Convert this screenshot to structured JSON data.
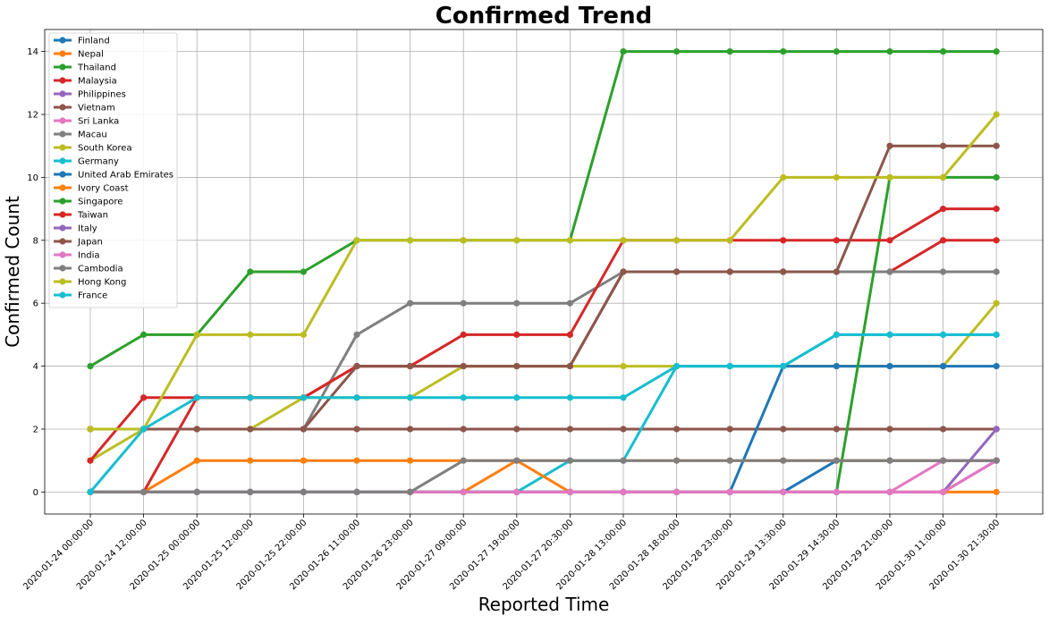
{
  "chart_data": {
    "type": "line",
    "title": "Confirmed Trend",
    "xlabel": "Reported Time",
    "ylabel": "Confirmed Count",
    "categories": [
      "2020-01-24 00:00:00",
      "2020-01-24 12:00:00",
      "2020-01-25 00:00:00",
      "2020-01-25 12:00:00",
      "2020-01-25 22:00:00",
      "2020-01-26 11:00:00",
      "2020-01-26 23:00:00",
      "2020-01-27 09:00:00",
      "2020-01-27 19:00:00",
      "2020-01-27 20:30:00",
      "2020-01-28 13:00:00",
      "2020-01-28 18:00:00",
      "2020-01-28 23:00:00",
      "2020-01-29 13:30:00",
      "2020-01-29 14:30:00",
      "2020-01-29 21:00:00",
      "2020-01-30 11:00:00",
      "2020-01-30 21:30:00"
    ],
    "ylim": [
      -0.7,
      14.7
    ],
    "yticks": [
      0,
      2,
      4,
      6,
      8,
      10,
      12,
      14
    ],
    "grid": true,
    "legend_position": "top-left",
    "series": [
      {
        "name": "Finland",
        "color": "#1f77b4",
        "values": [
          0,
          0,
          0,
          0,
          0,
          0,
          0,
          0,
          0,
          0,
          0,
          0,
          0,
          0,
          1,
          1,
          1,
          1
        ]
      },
      {
        "name": "Nepal",
        "color": "#ff7f0e",
        "values": [
          0,
          0,
          1,
          1,
          1,
          1,
          1,
          1,
          1,
          1,
          1,
          1,
          1,
          1,
          1,
          1,
          1,
          1
        ]
      },
      {
        "name": "Thailand",
        "color": "#2ca02c",
        "values": [
          4,
          5,
          5,
          7,
          7,
          8,
          8,
          8,
          8,
          8,
          14,
          14,
          14,
          14,
          14,
          14,
          14,
          14
        ]
      },
      {
        "name": "Malaysia",
        "color": "#d62728",
        "values": [
          0,
          0,
          3,
          3,
          3,
          4,
          4,
          4,
          4,
          4,
          7,
          7,
          7,
          7,
          7,
          7,
          8,
          8
        ]
      },
      {
        "name": "Philippines",
        "color": "#9467bd",
        "values": [
          0,
          0,
          0,
          0,
          0,
          0,
          0,
          0,
          0,
          0,
          0,
          0,
          0,
          0,
          0,
          0,
          0,
          1
        ]
      },
      {
        "name": "Vietnam",
        "color": "#8c564b",
        "values": [
          2,
          2,
          2,
          2,
          2,
          2,
          2,
          2,
          2,
          2,
          2,
          2,
          2,
          2,
          2,
          2,
          2,
          2
        ]
      },
      {
        "name": "Sri Lanka",
        "color": "#e377c2",
        "values": [
          0,
          0,
          0,
          0,
          0,
          0,
          0,
          0,
          0,
          0,
          0,
          0,
          0,
          0,
          0,
          0,
          1,
          1
        ]
      },
      {
        "name": "Macau",
        "color": "#7f7f7f",
        "values": [
          2,
          2,
          2,
          2,
          2,
          5,
          6,
          6,
          6,
          6,
          7,
          7,
          7,
          7,
          7,
          7,
          7,
          7
        ]
      },
      {
        "name": "South Korea",
        "color": "#bcbd22",
        "values": [
          1,
          2,
          2,
          2,
          3,
          3,
          3,
          4,
          4,
          4,
          4,
          4,
          4,
          4,
          4,
          4,
          4,
          6
        ]
      },
      {
        "name": "Germany",
        "color": "#17becf",
        "values": [
          0,
          0,
          0,
          0,
          0,
          0,
          0,
          0,
          0,
          1,
          1,
          4,
          4,
          4,
          5,
          5,
          5,
          5
        ]
      },
      {
        "name": "United Arab Emirates",
        "color": "#1f77b4",
        "values": [
          0,
          0,
          0,
          0,
          0,
          0,
          0,
          0,
          0,
          0,
          0,
          0,
          0,
          4,
          4,
          4,
          4,
          4
        ]
      },
      {
        "name": "Ivory Coast",
        "color": "#ff7f0e",
        "values": [
          0,
          0,
          0,
          0,
          0,
          0,
          0,
          0,
          1,
          0,
          0,
          0,
          0,
          0,
          0,
          0,
          0,
          0
        ]
      },
      {
        "name": "Singapore",
        "color": "#2ca02c",
        "values": [
          0,
          0,
          0,
          0,
          0,
          0,
          0,
          0,
          0,
          0,
          0,
          0,
          0,
          0,
          0,
          10,
          10,
          10
        ]
      },
      {
        "name": "Taiwan",
        "color": "#d62728",
        "values": [
          1,
          3,
          3,
          3,
          3,
          4,
          4,
          5,
          5,
          5,
          8,
          8,
          8,
          8,
          8,
          8,
          9,
          9
        ]
      },
      {
        "name": "Italy",
        "color": "#9467bd",
        "values": [
          0,
          0,
          0,
          0,
          0,
          0,
          0,
          0,
          0,
          0,
          0,
          0,
          0,
          0,
          0,
          0,
          0,
          2
        ]
      },
      {
        "name": "Japan",
        "color": "#8c564b",
        "values": [
          2,
          2,
          2,
          2,
          2,
          4,
          4,
          4,
          4,
          4,
          7,
          7,
          7,
          7,
          7,
          11,
          11,
          11
        ]
      },
      {
        "name": "India",
        "color": "#e377c2",
        "values": [
          0,
          0,
          0,
          0,
          0,
          0,
          0,
          0,
          0,
          0,
          0,
          0,
          0,
          0,
          0,
          0,
          0,
          1
        ]
      },
      {
        "name": "Cambodia",
        "color": "#7f7f7f",
        "values": [
          0,
          0,
          0,
          0,
          0,
          0,
          0,
          1,
          1,
          1,
          1,
          1,
          1,
          1,
          1,
          1,
          1,
          1
        ]
      },
      {
        "name": "Hong Kong",
        "color": "#bcbd22",
        "values": [
          2,
          2,
          5,
          5,
          5,
          8,
          8,
          8,
          8,
          8,
          8,
          8,
          8,
          10,
          10,
          10,
          10,
          12
        ]
      },
      {
        "name": "France",
        "color": "#17becf",
        "values": [
          0,
          2,
          3,
          3,
          3,
          3,
          3,
          3,
          3,
          3,
          3,
          4,
          4,
          4,
          5,
          5,
          5,
          5
        ]
      }
    ]
  }
}
